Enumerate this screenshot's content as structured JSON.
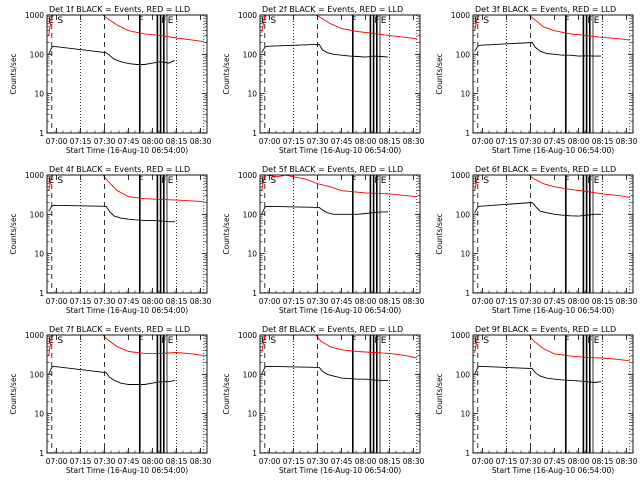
{
  "figure": {
    "x_tick_labels": [
      "07:00",
      "07:15",
      "07:30",
      "07:45",
      "08:00",
      "08:15",
      "08:30"
    ],
    "y_tick_labels": [
      "1",
      "10",
      "100",
      "1000"
    ],
    "ylabel": "Counts/sec",
    "xlabel": "Start Time (16-Aug-10 06:54:00)",
    "colors": {
      "events": "#000000",
      "lld": "#ff0000",
      "axes": "#000000",
      "background": "#ffffff"
    },
    "marker_labels": [
      "E",
      "S",
      "F",
      "F",
      "E"
    ]
  },
  "chart_data": [
    {
      "type": "line",
      "title": "Det 1f BLACK = Events, RED = LLD",
      "xlabel": "Start Time (16-Aug-10 06:54:00)",
      "ylabel": "Counts/sec",
      "xlim": [
        "06:54",
        "08:34"
      ],
      "ylim": [
        1,
        1000
      ],
      "yscale": "log",
      "series": [
        {
          "name": "Events",
          "color": "#000000",
          "x": [
            "06:55",
            "06:57",
            "06:58",
            "07:31",
            "07:33",
            "07:36",
            "07:40",
            "07:45",
            "07:50",
            "07:55",
            "08:00",
            "08:05",
            "08:10",
            "08:14"
          ],
          "y": [
            100,
            150,
            160,
            110,
            95,
            75,
            65,
            58,
            55,
            55,
            60,
            65,
            60,
            70
          ]
        },
        {
          "name": "LLD",
          "color": "#ff0000",
          "x": [
            "06:55",
            "06:57",
            "06:58",
            "07:29",
            "07:32",
            "07:38",
            "07:45",
            "07:55",
            "08:05",
            "08:15",
            "08:25",
            "08:32"
          ],
          "y": [
            300,
            900,
            1000,
            1000,
            800,
            550,
            400,
            330,
            300,
            260,
            230,
            210
          ]
        }
      ]
    },
    {
      "type": "line",
      "title": "Det 2f BLACK = Events, RED = LLD",
      "xlabel": "Start Time (16-Aug-10 06:54:00)",
      "ylabel": "Counts/sec",
      "xlim": [
        "06:54",
        "08:34"
      ],
      "ylim": [
        1,
        1000
      ],
      "yscale": "log",
      "series": [
        {
          "name": "Events",
          "color": "#000000",
          "x": [
            "06:55",
            "06:57",
            "06:58",
            "07:31",
            "07:33",
            "07:36",
            "07:40",
            "07:45",
            "07:50",
            "07:55",
            "08:00",
            "08:05",
            "08:10",
            "08:14"
          ],
          "y": [
            110,
            150,
            160,
            180,
            130,
            110,
            100,
            95,
            90,
            88,
            85,
            90,
            88,
            85
          ]
        },
        {
          "name": "LLD",
          "color": "#ff0000",
          "x": [
            "06:55",
            "06:57",
            "06:58",
            "07:29",
            "07:32",
            "07:38",
            "07:45",
            "07:55",
            "08:05",
            "08:15",
            "08:25",
            "08:32"
          ],
          "y": [
            350,
            900,
            1000,
            1000,
            850,
            600,
            450,
            380,
            340,
            300,
            270,
            250
          ]
        }
      ]
    },
    {
      "type": "line",
      "title": "Det 3f BLACK = Events, RED = LLD",
      "xlabel": "Start Time (16-Aug-10 06:54:00)",
      "ylabel": "Counts/sec",
      "xlim": [
        "06:54",
        "08:34"
      ],
      "ylim": [
        1,
        1000
      ],
      "yscale": "log",
      "series": [
        {
          "name": "Events",
          "color": "#000000",
          "x": [
            "06:55",
            "06:57",
            "06:58",
            "07:31",
            "07:33",
            "07:36",
            "07:40",
            "07:45",
            "07:50",
            "07:55",
            "08:00",
            "08:05",
            "08:10",
            "08:14"
          ],
          "y": [
            120,
            160,
            170,
            200,
            150,
            120,
            105,
            100,
            95,
            95,
            90,
            92,
            90,
            90
          ]
        },
        {
          "name": "LLD",
          "color": "#ff0000",
          "x": [
            "06:55",
            "06:57",
            "06:58",
            "07:29",
            "07:32",
            "07:38",
            "07:45",
            "07:55",
            "08:05",
            "08:15",
            "08:25",
            "08:32"
          ],
          "y": [
            400,
            950,
            1000,
            1000,
            800,
            500,
            400,
            330,
            300,
            270,
            250,
            230
          ]
        }
      ]
    },
    {
      "type": "line",
      "title": "Det 4f BLACK = Events, RED = LLD",
      "xlabel": "Start Time (16-Aug-10 06:54:00)",
      "ylabel": "Counts/sec",
      "xlim": [
        "06:54",
        "08:34"
      ],
      "ylim": [
        1,
        1000
      ],
      "yscale": "log",
      "series": [
        {
          "name": "Events",
          "color": "#000000",
          "x": [
            "06:55",
            "06:57",
            "06:58",
            "07:31",
            "07:33",
            "07:36",
            "07:40",
            "07:45",
            "07:50",
            "07:55",
            "08:00",
            "08:05",
            "08:10",
            "08:14"
          ],
          "y": [
            120,
            160,
            170,
            160,
            120,
            90,
            80,
            75,
            72,
            70,
            70,
            68,
            65,
            65
          ]
        },
        {
          "name": "LLD",
          "color": "#ff0000",
          "x": [
            "06:55",
            "06:57",
            "06:58",
            "07:29",
            "07:32",
            "07:38",
            "07:45",
            "07:55",
            "08:05",
            "08:15",
            "08:25",
            "08:32"
          ],
          "y": [
            400,
            950,
            1000,
            1000,
            700,
            400,
            280,
            250,
            240,
            230,
            220,
            210
          ]
        }
      ]
    },
    {
      "type": "line",
      "title": "Det 5f BLACK = Events, RED = LLD",
      "xlabel": "Start Time (16-Aug-10 06:54:00)",
      "ylabel": "Counts/sec",
      "xlim": [
        "06:54",
        "08:34"
      ],
      "ylim": [
        1,
        1000
      ],
      "yscale": "log",
      "series": [
        {
          "name": "Events",
          "color": "#000000",
          "x": [
            "06:55",
            "06:57",
            "06:58",
            "07:31",
            "07:33",
            "07:36",
            "07:40",
            "07:45",
            "07:50",
            "07:55",
            "08:00",
            "08:05",
            "08:10",
            "08:14"
          ],
          "y": [
            100,
            150,
            160,
            150,
            130,
            110,
            100,
            100,
            100,
            100,
            105,
            110,
            115,
            115
          ]
        },
        {
          "name": "LLD",
          "color": "#ff0000",
          "x": [
            "06:55",
            "06:57",
            "06:58",
            "07:05",
            "07:10",
            "07:15",
            "07:22",
            "07:30",
            "07:38",
            "07:45",
            "08:00",
            "08:15",
            "08:32"
          ],
          "y": [
            400,
            1000,
            1000,
            900,
            1000,
            900,
            800,
            600,
            500,
            400,
            350,
            330,
            280
          ]
        }
      ]
    },
    {
      "type": "line",
      "title": "Det 6f BLACK = Events, RED = LLD",
      "xlabel": "Start Time (16-Aug-10 06:54:00)",
      "ylabel": "Counts/sec",
      "xlim": [
        "06:54",
        "08:34"
      ],
      "ylim": [
        1,
        1000
      ],
      "yscale": "log",
      "series": [
        {
          "name": "Events",
          "color": "#000000",
          "x": [
            "06:55",
            "06:57",
            "06:58",
            "07:31",
            "07:33",
            "07:36",
            "07:40",
            "07:45",
            "07:50",
            "07:55",
            "08:00",
            "08:05",
            "08:10",
            "08:14"
          ],
          "y": [
            110,
            150,
            160,
            200,
            160,
            120,
            110,
            100,
            95,
            92,
            90,
            95,
            100,
            100
          ]
        },
        {
          "name": "LLD",
          "color": "#ff0000",
          "x": [
            "06:55",
            "06:57",
            "06:58",
            "07:29",
            "07:32",
            "07:38",
            "07:45",
            "07:55",
            "08:05",
            "08:15",
            "08:25",
            "08:32"
          ],
          "y": [
            400,
            950,
            1000,
            1000,
            800,
            600,
            500,
            430,
            380,
            330,
            300,
            270
          ]
        }
      ]
    },
    {
      "type": "line",
      "title": "Det 7f BLACK = Events, RED = LLD",
      "xlabel": "Start Time (16-Aug-10 06:54:00)",
      "ylabel": "Counts/sec",
      "xlim": [
        "06:54",
        "08:34"
      ],
      "ylim": [
        1,
        1000
      ],
      "yscale": "log",
      "series": [
        {
          "name": "Events",
          "color": "#000000",
          "x": [
            "06:55",
            "06:57",
            "06:58",
            "07:31",
            "07:33",
            "07:36",
            "07:40",
            "07:45",
            "07:50",
            "07:55",
            "08:00",
            "08:05",
            "08:10",
            "08:14"
          ],
          "y": [
            100,
            150,
            160,
            110,
            85,
            70,
            60,
            55,
            55,
            55,
            60,
            65,
            65,
            70
          ]
        },
        {
          "name": "LLD",
          "color": "#ff0000",
          "x": [
            "06:55",
            "06:57",
            "06:58",
            "07:29",
            "07:32",
            "07:38",
            "07:45",
            "07:55",
            "08:05",
            "08:15",
            "08:25",
            "08:32"
          ],
          "y": [
            300,
            900,
            1000,
            1000,
            750,
            500,
            380,
            340,
            340,
            360,
            330,
            300
          ]
        }
      ]
    },
    {
      "type": "line",
      "title": "Det 8f BLACK = Events, RED = LLD",
      "xlabel": "Start Time (16-Aug-10 06:54:00)",
      "ylabel": "Counts/sec",
      "xlim": [
        "06:54",
        "08:34"
      ],
      "ylim": [
        1,
        1000
      ],
      "yscale": "log",
      "series": [
        {
          "name": "Events",
          "color": "#000000",
          "x": [
            "06:55",
            "06:57",
            "06:58",
            "07:31",
            "07:33",
            "07:36",
            "07:40",
            "07:45",
            "07:50",
            "07:55",
            "08:00",
            "08:05",
            "08:10",
            "08:14"
          ],
          "y": [
            100,
            150,
            160,
            150,
            120,
            100,
            90,
            80,
            78,
            75,
            75,
            72,
            70,
            70
          ]
        },
        {
          "name": "LLD",
          "color": "#ff0000",
          "x": [
            "06:55",
            "06:57",
            "06:58",
            "07:29",
            "07:32",
            "07:38",
            "07:45",
            "07:55",
            "08:05",
            "08:15",
            "08:25",
            "08:32"
          ],
          "y": [
            350,
            950,
            1000,
            1000,
            700,
            500,
            420,
            380,
            360,
            340,
            300,
            260
          ]
        }
      ]
    },
    {
      "type": "line",
      "title": "Det 9f BLACK = Events, RED = LLD",
      "xlabel": "Start Time (16-Aug-10 06:54:00)",
      "ylabel": "Counts/sec",
      "xlim": [
        "06:54",
        "08:34"
      ],
      "ylim": [
        1,
        1000
      ],
      "yscale": "log",
      "series": [
        {
          "name": "Events",
          "color": "#000000",
          "x": [
            "06:55",
            "06:57",
            "06:58",
            "07:31",
            "07:33",
            "07:36",
            "07:40",
            "07:45",
            "07:50",
            "07:55",
            "08:00",
            "08:05",
            "08:10",
            "08:14"
          ],
          "y": [
            100,
            150,
            160,
            140,
            110,
            90,
            80,
            75,
            72,
            70,
            68,
            65,
            62,
            65
          ]
        },
        {
          "name": "LLD",
          "color": "#ff0000",
          "x": [
            "06:55",
            "06:57",
            "06:58",
            "07:29",
            "07:32",
            "07:38",
            "07:45",
            "07:55",
            "08:05",
            "08:15",
            "08:25",
            "08:32"
          ],
          "y": [
            350,
            950,
            1000,
            1000,
            700,
            450,
            330,
            290,
            270,
            260,
            240,
            220
          ]
        }
      ]
    }
  ]
}
